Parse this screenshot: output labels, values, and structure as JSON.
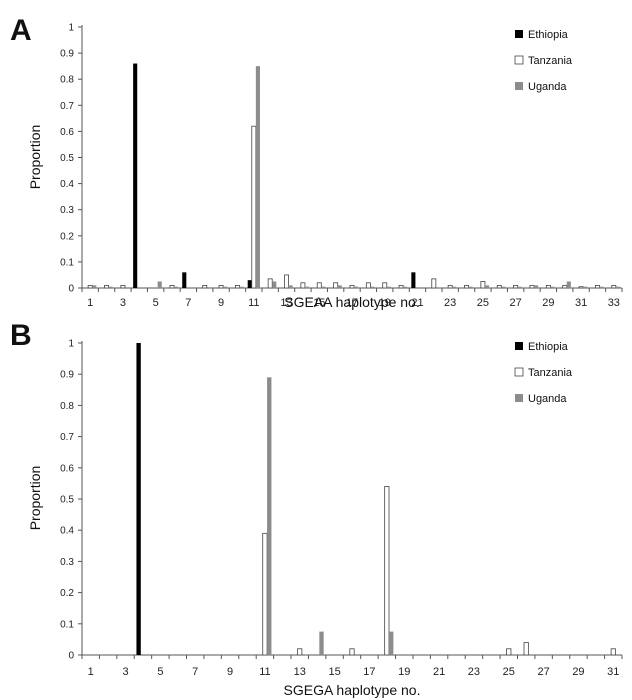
{
  "chart_data": [
    {
      "panel": "A",
      "type": "bar",
      "xlabel": "SGEAA haplotype no.",
      "ylabel": "Proportion",
      "ylim": [
        0,
        1
      ],
      "yticks": [
        "0",
        "0.1",
        "0.2",
        "0.3",
        "0.4",
        "0.5",
        "0.6",
        "0.7",
        "0.8",
        "0.9",
        "1"
      ],
      "categories": [
        "1",
        "2",
        "3",
        "4",
        "5",
        "6",
        "7",
        "8",
        "9",
        "10",
        "11",
        "12",
        "13",
        "14",
        "15",
        "16",
        "17",
        "18",
        "19",
        "20",
        "21",
        "22",
        "23",
        "24",
        "25",
        "26",
        "27",
        "28",
        "29",
        "30",
        "31",
        "32",
        "33"
      ],
      "xtick_labels": [
        "1",
        "3",
        "5",
        "7",
        "9",
        "11",
        "13",
        "15",
        "17",
        "19",
        "21",
        "23",
        "25",
        "27",
        "29",
        "31",
        "33"
      ],
      "legend_position": "top-right",
      "series": [
        {
          "name": "Ethiopia",
          "color": "#000000",
          "values": [
            0,
            0,
            0,
            0.86,
            0,
            0,
            0.06,
            0,
            0,
            0,
            0.03,
            0,
            0,
            0,
            0,
            0,
            0,
            0,
            0,
            0,
            0.06,
            0,
            0,
            0,
            0,
            0,
            0,
            0,
            0,
            0,
            0,
            0,
            0
          ]
        },
        {
          "name": "Tanzania",
          "color": "#ffffff",
          "values": [
            0.01,
            0.01,
            0.01,
            0,
            0,
            0.01,
            0,
            0.01,
            0.01,
            0.01,
            0.62,
            0.035,
            0.05,
            0.02,
            0.02,
            0.02,
            0.01,
            0.02,
            0.02,
            0.01,
            0,
            0.035,
            0.01,
            0.01,
            0.025,
            0.01,
            0.01,
            0.01,
            0.01,
            0.01,
            0.005,
            0.01,
            0.01
          ]
        },
        {
          "name": "Uganda",
          "color": "#8c8c8c",
          "values": [
            0.01,
            0.005,
            0,
            0,
            0.025,
            0.005,
            0,
            0,
            0.005,
            0.005,
            0.85,
            0.025,
            0.01,
            0.005,
            0.005,
            0.01,
            0.005,
            0.005,
            0.005,
            0.005,
            0,
            0,
            0.005,
            0.005,
            0.01,
            0.005,
            0.005,
            0.01,
            0.005,
            0.025,
            0.005,
            0.005,
            0.005
          ]
        }
      ]
    },
    {
      "panel": "B",
      "type": "bar",
      "xlabel": "SGEGA haplotype no.",
      "ylabel": "Proportion",
      "ylim": [
        0,
        1
      ],
      "yticks": [
        "0",
        "0.1",
        "0.2",
        "0.3",
        "0.4",
        "0.5",
        "0.6",
        "0.7",
        "0.8",
        "0.9",
        "1"
      ],
      "categories": [
        "1",
        "2",
        "3",
        "4",
        "5",
        "6",
        "7",
        "8",
        "9",
        "10",
        "11",
        "12",
        "13",
        "14",
        "15",
        "16",
        "17",
        "18",
        "19",
        "20",
        "21",
        "22",
        "23",
        "24",
        "25",
        "26",
        "27",
        "28",
        "29",
        "30",
        "31"
      ],
      "xtick_labels": [
        "1",
        "3",
        "5",
        "7",
        "9",
        "11",
        "13",
        "15",
        "17",
        "19",
        "21",
        "23",
        "25",
        "27",
        "29",
        "31"
      ],
      "legend_position": "top-right",
      "series": [
        {
          "name": "Ethiopia",
          "color": "#000000",
          "values": [
            0,
            0,
            0,
            1,
            0,
            0,
            0,
            0,
            0,
            0,
            0,
            0,
            0,
            0,
            0,
            0,
            0,
            0,
            0,
            0,
            0,
            0,
            0,
            0,
            0,
            0,
            0,
            0,
            0,
            0,
            0
          ]
        },
        {
          "name": "Tanzania",
          "color": "#ffffff",
          "values": [
            0,
            0,
            0,
            0,
            0,
            0,
            0,
            0,
            0,
            0,
            0.39,
            0,
            0.02,
            0,
            0,
            0.02,
            0,
            0.54,
            0,
            0,
            0,
            0,
            0,
            0,
            0.02,
            0.04,
            0,
            0,
            0,
            0,
            0.02
          ]
        },
        {
          "name": "Uganda",
          "color": "#8c8c8c",
          "values": [
            0,
            0,
            0,
            0,
            0,
            0,
            0,
            0,
            0,
            0,
            0.89,
            0,
            0,
            0.075,
            0,
            0,
            0,
            0.075,
            0,
            0,
            0,
            0,
            0,
            0,
            0,
            0,
            0,
            0,
            0,
            0,
            0
          ]
        }
      ]
    }
  ]
}
